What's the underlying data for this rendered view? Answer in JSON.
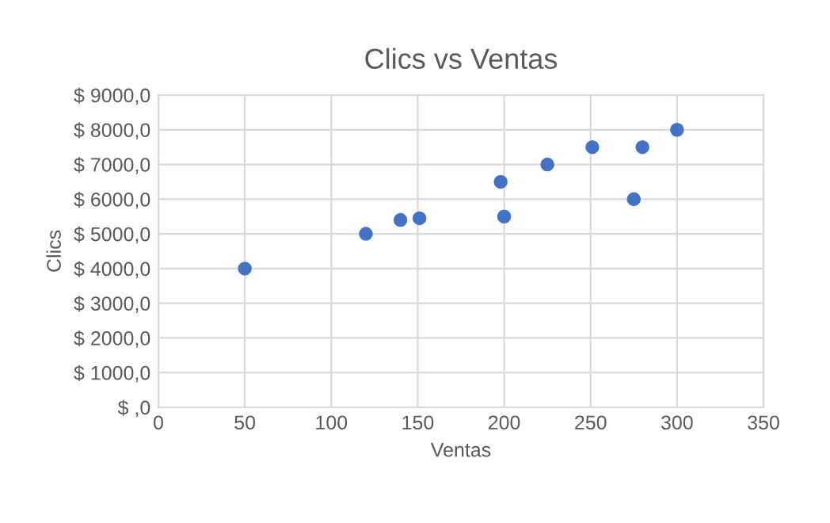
{
  "chart_data": {
    "type": "scatter",
    "title": "Clics vs Ventas",
    "xlabel": "Ventas",
    "ylabel": "Clics",
    "x": [
      50,
      120,
      140,
      151,
      198,
      200,
      225,
      251,
      275,
      280,
      300
    ],
    "series": [
      {
        "color": "#4472c4",
        "values": [
          4000,
          5000,
          5400,
          5450,
          6500,
          5500,
          7000,
          7500,
          6000,
          7500,
          8000
        ]
      }
    ],
    "xlim": [
      0,
      350
    ],
    "xticks": [
      0,
      50,
      100,
      150,
      200,
      250,
      300,
      350
    ],
    "ylim": [
      0,
      9000
    ],
    "yticks": [
      {
        "value": 0,
        "label": "$ ,0"
      },
      {
        "value": 1000,
        "label": "$ 1000,0"
      },
      {
        "value": 2000,
        "label": "$ 2000,0"
      },
      {
        "value": 3000,
        "label": "$ 3000,0"
      },
      {
        "value": 4000,
        "label": "$ 4000,0"
      },
      {
        "value": 5000,
        "label": "$ 5000,0"
      },
      {
        "value": 6000,
        "label": "$ 6000,0"
      },
      {
        "value": 7000,
        "label": "$ 7000,0"
      },
      {
        "value": 8000,
        "label": "$ 8000,0"
      },
      {
        "value": 9000,
        "label": "$ 9000,0"
      }
    ],
    "grid": true,
    "marker": "circle"
  }
}
